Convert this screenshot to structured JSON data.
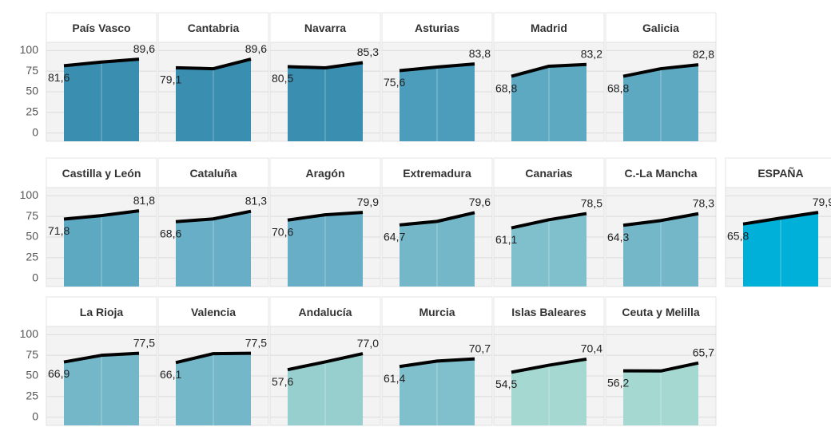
{
  "chart_data": {
    "type": "area",
    "ylim": [
      -10,
      110
    ],
    "yticks": [
      0,
      25,
      50,
      75,
      100
    ],
    "grid": true,
    "line_color": "#000000",
    "panels": [
      {
        "title": "País Vasco",
        "values": [
          81.6,
          86,
          89.6
        ],
        "value_labels": [
          "81,6",
          null,
          "89,6"
        ],
        "color": "#3a8fb0"
      },
      {
        "title": "Cantabria",
        "values": [
          79.1,
          78,
          89.6
        ],
        "value_labels": [
          "79,1",
          null,
          "89,6"
        ],
        "color": "#3a8fb0"
      },
      {
        "title": "Navarra",
        "values": [
          80.5,
          79,
          85.3
        ],
        "value_labels": [
          "80,5",
          null,
          "85,3"
        ],
        "color": "#3a8fb0"
      },
      {
        "title": "Asturias",
        "values": [
          75.6,
          80,
          83.8
        ],
        "value_labels": [
          "75,6",
          null,
          "83,8"
        ],
        "color": "#4c9dbb"
      },
      {
        "title": "Madrid",
        "values": [
          68.8,
          81,
          83.2
        ],
        "value_labels": [
          "68,8",
          null,
          "83,2"
        ],
        "color": "#5ea9c2"
      },
      {
        "title": "Galicia",
        "values": [
          68.8,
          78,
          82.8
        ],
        "value_labels": [
          "68,8",
          null,
          "82,8"
        ],
        "color": "#5ea9c2"
      },
      {
        "title": "Castilla y León",
        "values": [
          71.8,
          76,
          81.8
        ],
        "value_labels": [
          "71,8",
          null,
          "81,8"
        ],
        "color": "#5ea9c2"
      },
      {
        "title": "Cataluña",
        "values": [
          68.6,
          72,
          81.3
        ],
        "value_labels": [
          "68,6",
          null,
          "81,3"
        ],
        "color": "#67aec6"
      },
      {
        "title": "Aragón",
        "values": [
          70.6,
          77,
          79.9
        ],
        "value_labels": [
          "70,6",
          null,
          "79,9"
        ],
        "color": "#67aec6"
      },
      {
        "title": "Extremadura",
        "values": [
          64.7,
          69,
          79.6
        ],
        "value_labels": [
          "64,7",
          null,
          "79,6"
        ],
        "color": "#74b7c9"
      },
      {
        "title": "Canarias",
        "values": [
          61.1,
          71,
          78.5
        ],
        "value_labels": [
          "61,1",
          null,
          "78,5"
        ],
        "color": "#80bfcc"
      },
      {
        "title": "C.-La Mancha",
        "values": [
          64.3,
          70,
          78.3
        ],
        "value_labels": [
          "64,3",
          null,
          "78,3"
        ],
        "color": "#74b7c9"
      },
      {
        "title": "ESPAÑA",
        "values": [
          65.8,
          73,
          79.9
        ],
        "value_labels": [
          "65,8",
          null,
          "79,9"
        ],
        "color": "#00b0d8",
        "title_color": "#00aad4"
      },
      {
        "title": "La Rioja",
        "values": [
          66.9,
          75,
          77.5
        ],
        "value_labels": [
          "66,9",
          null,
          "77,5"
        ],
        "color": "#74b7c9"
      },
      {
        "title": "Valencia",
        "values": [
          66.1,
          77,
          77.5
        ],
        "value_labels": [
          "66,1",
          null,
          "77,5"
        ],
        "color": "#74b7c9"
      },
      {
        "title": "Andalucía",
        "values": [
          57.6,
          67,
          77.0
        ],
        "value_labels": [
          "57,6",
          null,
          "77,0"
        ],
        "color": "#97cfcf"
      },
      {
        "title": "Murcia",
        "values": [
          61.4,
          68,
          70.7
        ],
        "value_labels": [
          "61,4",
          null,
          "70,7"
        ],
        "color": "#80bfcc"
      },
      {
        "title": "Islas Baleares",
        "values": [
          54.5,
          63,
          70.4
        ],
        "value_labels": [
          "54,5",
          null,
          "70,4"
        ],
        "color": "#a6d8d2"
      },
      {
        "title": "Ceuta y Melilla",
        "values": [
          56.2,
          56,
          65.7
        ],
        "value_labels": [
          "56,2",
          null,
          "65,7"
        ],
        "color": "#a6d8d2"
      }
    ]
  }
}
